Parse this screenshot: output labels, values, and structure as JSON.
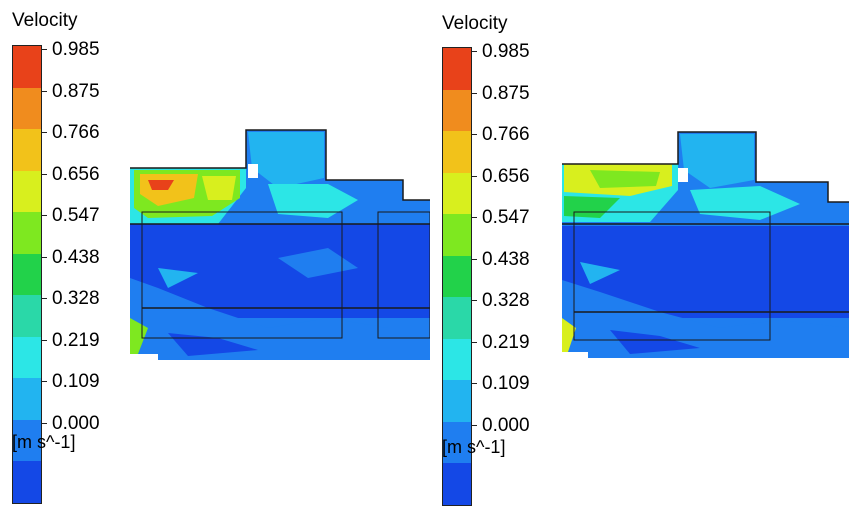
{
  "legends": [
    {
      "title": "Velocity",
      "unit": "[m s^-1]",
      "ticks": [
        "0.985",
        "0.875",
        "0.766",
        "0.656",
        "0.547",
        "0.438",
        "0.328",
        "0.219",
        "0.109",
        "0.000"
      ]
    },
    {
      "title": "Velocity",
      "unit": "[m s^-1]",
      "ticks": [
        "0.985",
        "0.875",
        "0.766",
        "0.656",
        "0.547",
        "0.438",
        "0.328",
        "0.219",
        "0.109",
        "0.000"
      ]
    }
  ],
  "colormap": [
    "#e8421a",
    "#f08c1e",
    "#f2c21a",
    "#d8ef1e",
    "#7ee820",
    "#22d24a",
    "#2ad8a8",
    "#2ce6e6",
    "#22b4f0",
    "#1f7ef0",
    "#1448e6"
  ],
  "contour_colors": {
    "low": "#1448e6",
    "low_mid": "#1f7ef0",
    "mid": "#22b4f0",
    "mid_high": "#2ce6e6",
    "green": "#22d24a",
    "lime": "#7ee820",
    "yellow": "#d8ef1e",
    "orange": "#f2c21a",
    "red": "#e8421a",
    "outline": "#1a1a1a"
  }
}
